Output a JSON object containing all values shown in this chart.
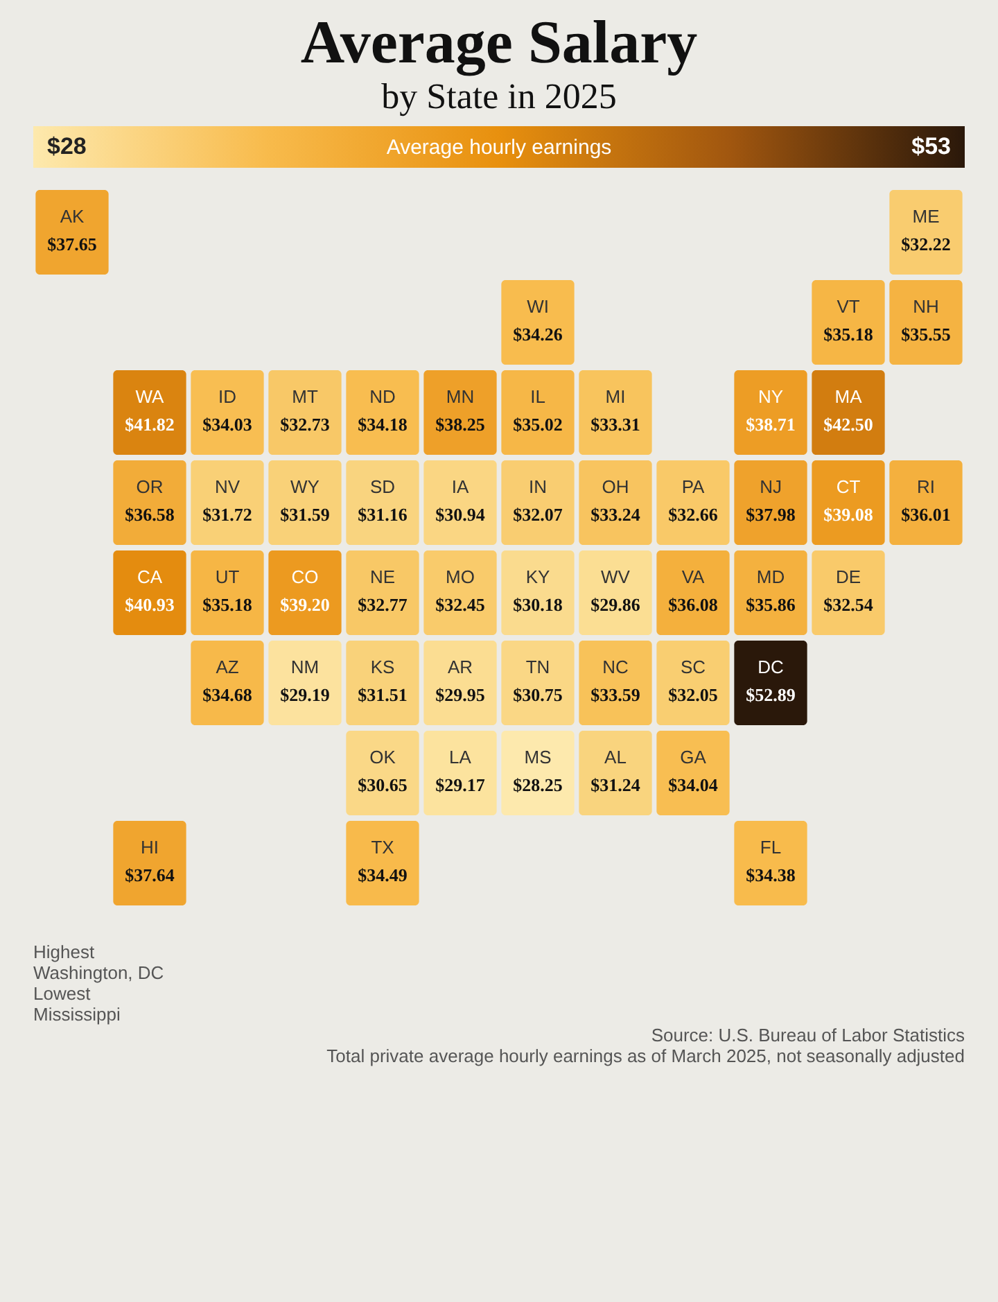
{
  "chart_data": {
    "type": "other",
    "title": "Average Salary",
    "subtitle": "by State in 2025",
    "legend_title": "Average hourly earnings",
    "categories": [
      "AK",
      "ME",
      "WI",
      "VT",
      "NH",
      "WA",
      "ID",
      "MT",
      "ND",
      "MN",
      "IL",
      "MI",
      "NY",
      "MA",
      "OR",
      "NV",
      "WY",
      "SD",
      "IA",
      "IN",
      "OH",
      "PA",
      "NJ",
      "CT",
      "RI",
      "CA",
      "UT",
      "CO",
      "NE",
      "MO",
      "KY",
      "WV",
      "VA",
      "MD",
      "DE",
      "AZ",
      "NM",
      "KS",
      "AR",
      "TN",
      "NC",
      "SC",
      "DC",
      "OK",
      "LA",
      "MS",
      "AL",
      "GA",
      "HI",
      "TX",
      "FL"
    ],
    "values": [
      37.65,
      32.22,
      34.26,
      35.18,
      35.55,
      41.82,
      34.03,
      32.73,
      34.18,
      38.25,
      35.02,
      33.31,
      38.71,
      42.5,
      36.58,
      31.72,
      31.59,
      31.16,
      30.94,
      32.07,
      33.24,
      32.66,
      37.98,
      39.08,
      36.01,
      40.93,
      35.18,
      39.2,
      32.77,
      32.45,
      30.18,
      29.86,
      36.08,
      35.86,
      32.54,
      34.68,
      29.19,
      31.51,
      29.95,
      30.75,
      33.59,
      32.05,
      52.89,
      30.65,
      29.17,
      28.25,
      31.24,
      34.04,
      37.64,
      34.49,
      34.38
    ],
    "value_labels": [
      "$37.65",
      "$32.22",
      "$34.26",
      "$35.18",
      "$35.55",
      "$41.82",
      "$34.03",
      "$32.73",
      "$34.18",
      "$38.25",
      "$35.02",
      "$33.31",
      "$38.71",
      "$42.50",
      "$36.58",
      "$31.72",
      "$31.59",
      "$31.16",
      "$30.94",
      "$32.07",
      "$33.24",
      "$32.66",
      "$37.98",
      "$39.08",
      "$36.01",
      "$40.93",
      "$35.18",
      "$39.20",
      "$32.77",
      "$32.45",
      "$30.18",
      "$29.86",
      "$36.08",
      "$35.86",
      "$32.54",
      "$34.68",
      "$29.19",
      "$31.51",
      "$29.95",
      "$30.75",
      "$33.59",
      "$32.05",
      "$52.89",
      "$30.65",
      "$29.17",
      "$28.25",
      "$31.24",
      "$34.04",
      "$37.64",
      "$34.49",
      "$34.38"
    ],
    "annotations": [
      "$28",
      "$53",
      "Highest",
      "Washington, DC",
      "Lowest",
      "Mississippi",
      "Source: U.S. Bureau of Labor Statistics",
      "Total private average hourly earnings as of March 2025, not seasonally adjusted"
    ]
  }
}
